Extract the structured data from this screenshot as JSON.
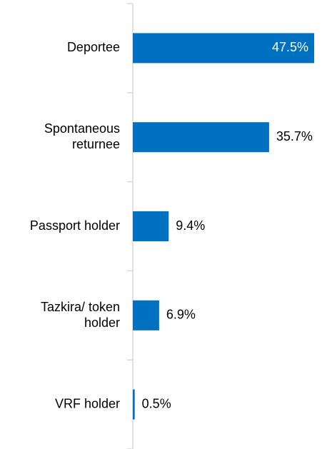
{
  "chart_data": {
    "type": "bar",
    "orientation": "horizontal",
    "categories": [
      "Deportee",
      "Spontaneous\nreturnee",
      "Passport holder",
      "Tazkira/ token\nholder",
      "VRF holder"
    ],
    "values": [
      47.5,
      35.7,
      9.4,
      6.9,
      0.5
    ],
    "value_labels": [
      "47.5%",
      "35.7%",
      "9.4%",
      "6.9%",
      "0.5%"
    ],
    "color": "#0070c0"
  }
}
